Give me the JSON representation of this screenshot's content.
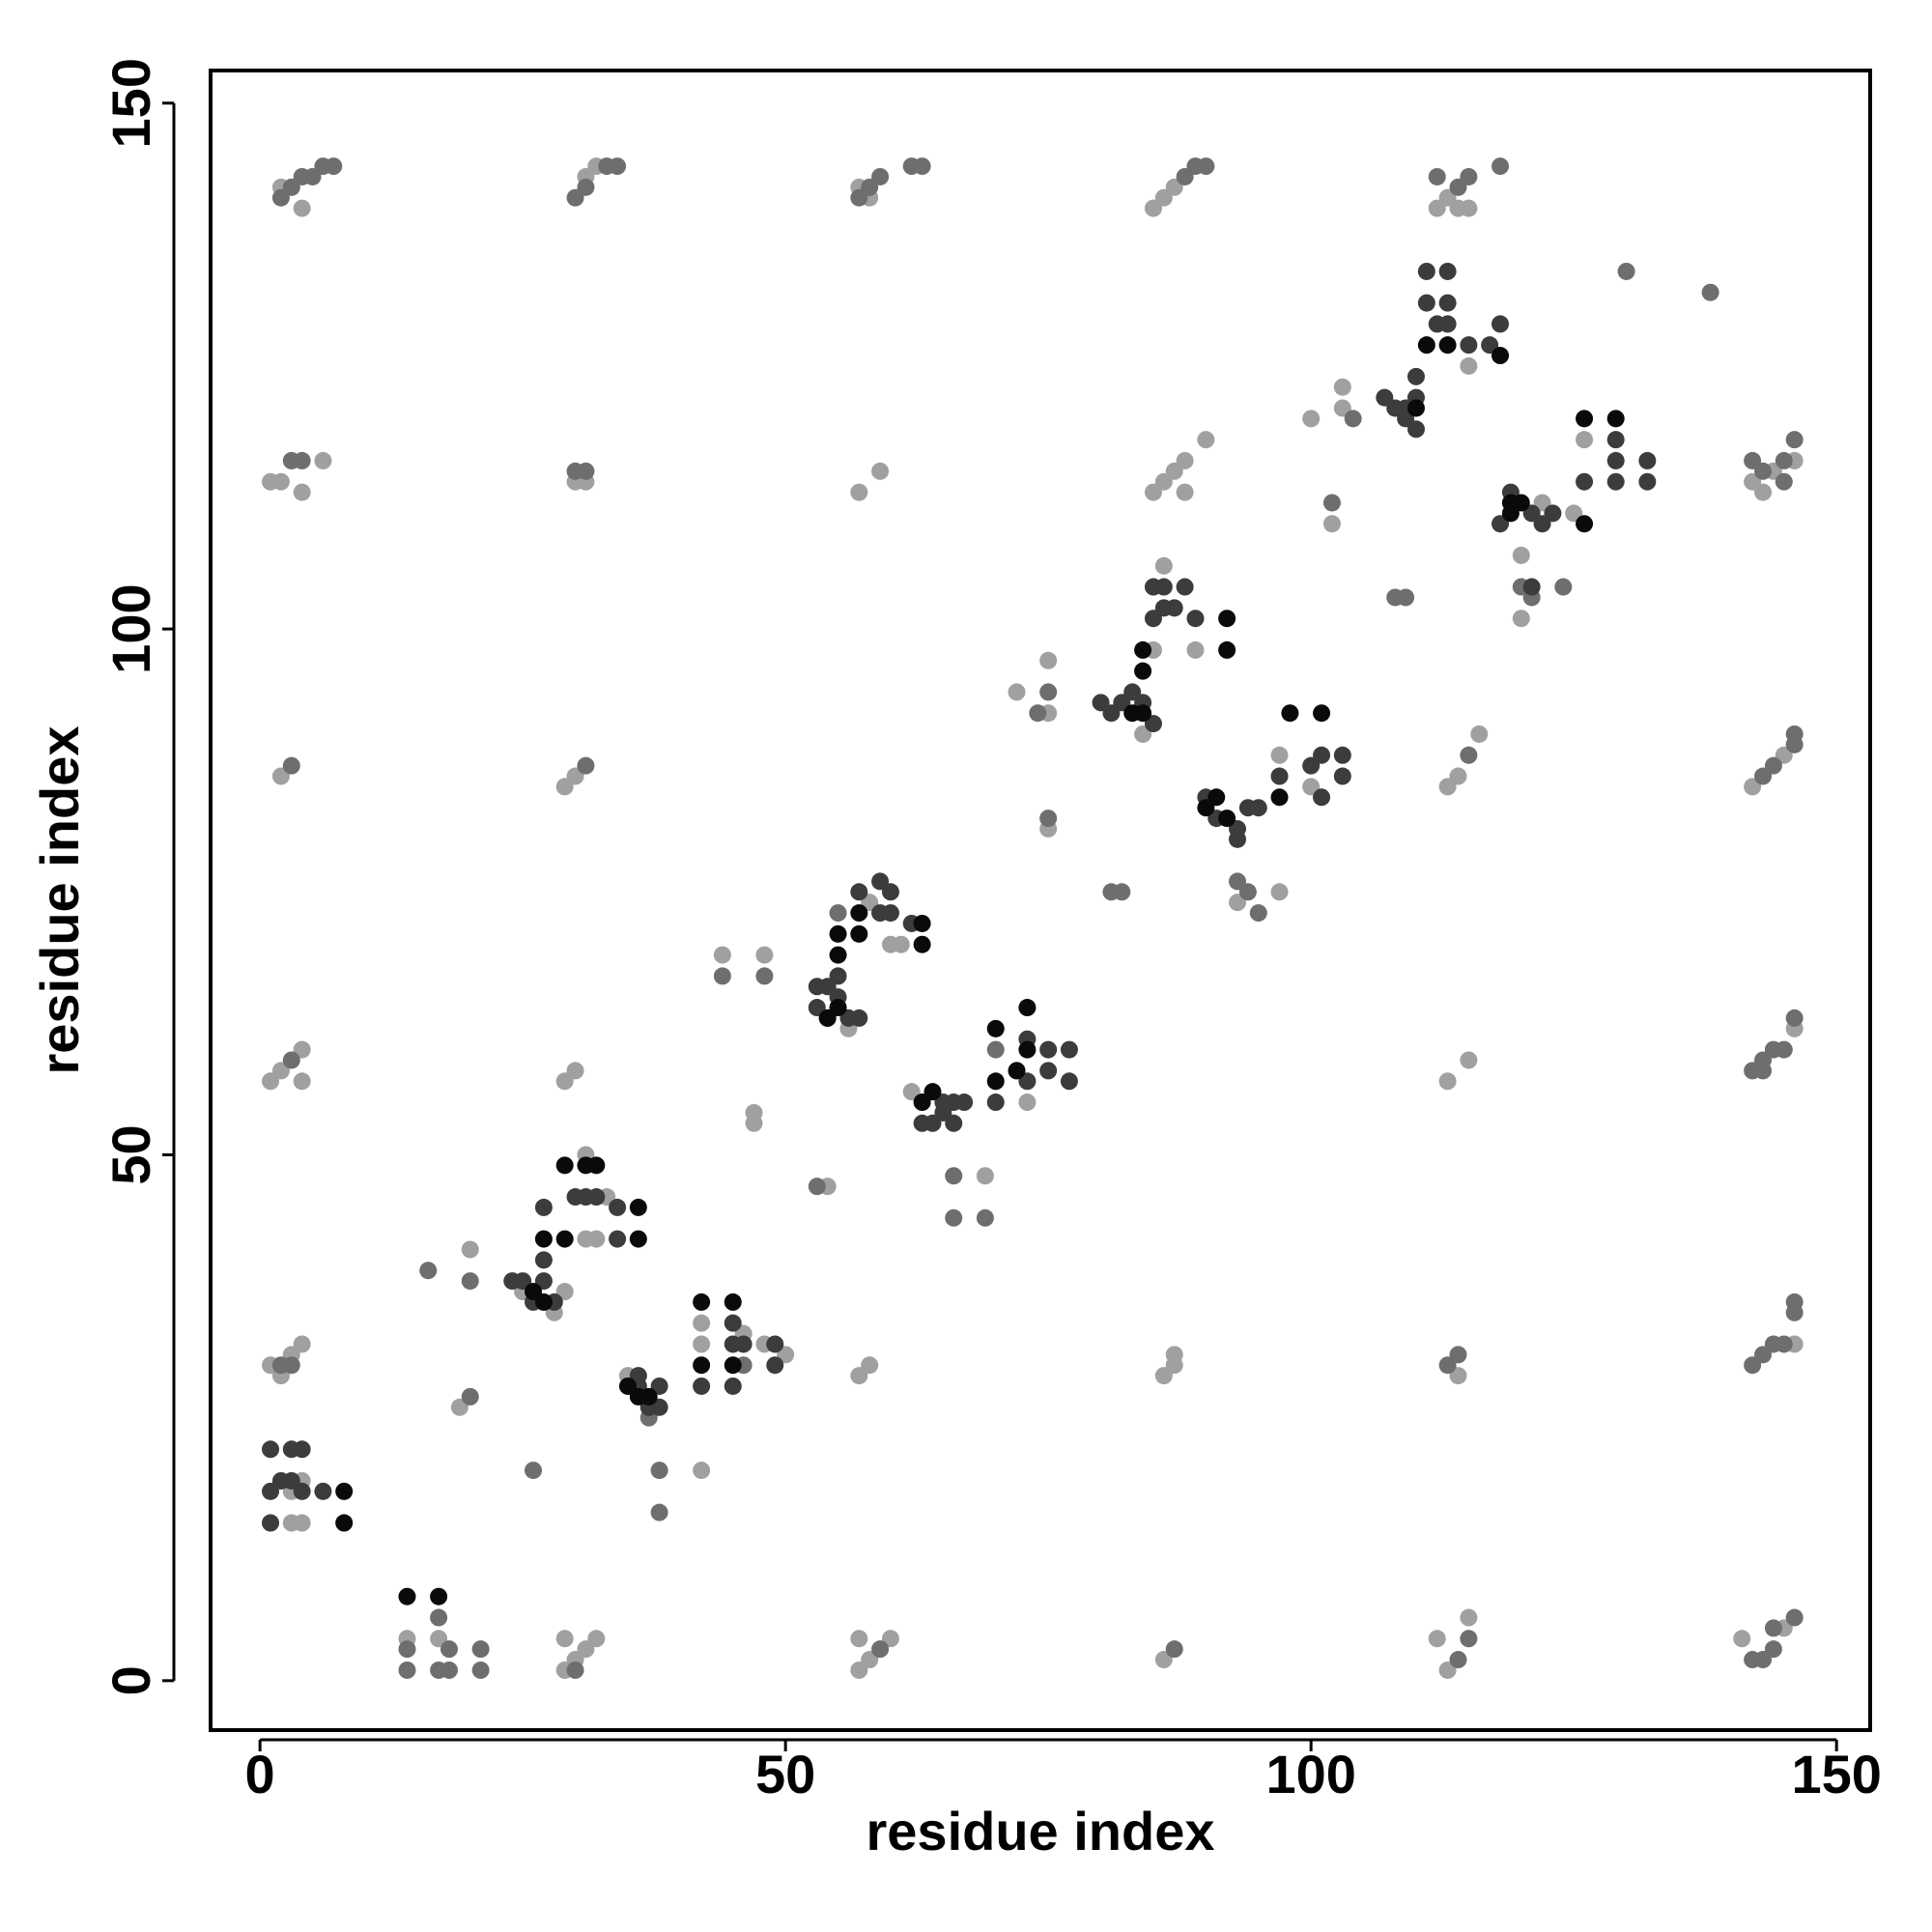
{
  "chart_data": {
    "type": "scatter",
    "xlabel": "residue index",
    "ylabel": "residue index",
    "xlim": [
      -4.7,
      153.2
    ],
    "ylim": [
      -4.7,
      153.1
    ],
    "xticks": [
      0,
      50,
      100,
      150
    ],
    "yticks": [
      0,
      50,
      100,
      150
    ],
    "series": [
      {
        "color": "#a0a0a0",
        "x": [
          2,
          4,
          31,
          32,
          57,
          58,
          85,
          86,
          87,
          112,
          113,
          114,
          115,
          1,
          2,
          4,
          6,
          30,
          31,
          57,
          59,
          85,
          86,
          87,
          88,
          90,
          88,
          142,
          143,
          144,
          146,
          2,
          29,
          30,
          113,
          114,
          116,
          142,
          145,
          1,
          2,
          4,
          4,
          29,
          30,
          113,
          115,
          146,
          1,
          2,
          3,
          4,
          57,
          58,
          86,
          87,
          87,
          114,
          146,
          14,
          17,
          29,
          29,
          30,
          31,
          32,
          57,
          58,
          60,
          57,
          86,
          112,
          113,
          115,
          141,
          145,
          3,
          4,
          3,
          4,
          25,
          28,
          29,
          31,
          31,
          32,
          33,
          20,
          19,
          35,
          42,
          42,
          46,
          48,
          50,
          42,
          56,
          58,
          61,
          60,
          44,
          48,
          47,
          47,
          54,
          62,
          69,
          72,
          73,
          75,
          75,
          72,
          75,
          86,
          85,
          89,
          84,
          97,
          100,
          93,
          97,
          100,
          103,
          103,
          102,
          120,
          120,
          115,
          126,
          125,
          122
        ],
        "values": [
          142,
          140,
          143,
          144,
          142,
          141,
          140,
          141,
          142,
          140,
          141,
          140,
          140,
          114,
          114,
          113,
          116,
          114,
          114,
          113,
          115,
          113,
          114,
          115,
          116,
          118,
          113,
          114,
          113,
          115,
          116,
          86,
          85,
          86,
          85,
          86,
          90,
          85,
          88,
          57,
          58,
          60,
          57,
          57,
          58,
          57,
          59,
          62,
          30,
          29,
          31,
          32,
          29,
          30,
          29,
          30,
          31,
          29,
          32,
          4,
          4,
          4,
          1,
          2,
          3,
          4,
          1,
          2,
          4,
          4,
          2,
          4,
          1,
          6,
          4,
          5,
          18,
          19,
          15,
          15,
          37,
          35,
          37,
          50,
          42,
          42,
          46,
          41,
          26,
          29,
          34,
          32,
          33,
          32,
          31,
          20,
          62,
          74,
          70,
          70,
          69,
          69,
          54,
          53,
          47,
          56,
          48,
          58,
          55,
          92,
          97,
          94,
          81,
          106,
          98,
          98,
          90,
          88,
          85,
          74,
          75,
          120,
          121,
          123,
          110,
          107,
          101,
          125,
          118,
          111,
          112
        ]
      },
      {
        "color": "#6e6e6e",
        "x": [
          2,
          3,
          4,
          5,
          6,
          7,
          30,
          31,
          33,
          34,
          57,
          58,
          59,
          62,
          63,
          88,
          89,
          90,
          112,
          114,
          115,
          118,
          3,
          4,
          30,
          31,
          142,
          143,
          145,
          145,
          146,
          3,
          31,
          115,
          143,
          144,
          146,
          146,
          3,
          142,
          143,
          144,
          145,
          143,
          146,
          2,
          3,
          113,
          114,
          142,
          143,
          144,
          145,
          146,
          146,
          14,
          14,
          17,
          17,
          18,
          18,
          21,
          21,
          30,
          59,
          87,
          114,
          115,
          142,
          143,
          144,
          144,
          146,
          16,
          20,
          20,
          26,
          37,
          38,
          38,
          46,
          44,
          48,
          55,
          53,
          66,
          69,
          66,
          70,
          74,
          75,
          75,
          81,
          82,
          93,
          94,
          95,
          104,
          102,
          108,
          109,
          130,
          138,
          120,
          124,
          121
        ],
        "values": [
          141,
          142,
          143,
          143,
          144,
          144,
          141,
          142,
          144,
          144,
          141,
          142,
          143,
          144,
          144,
          143,
          144,
          144,
          143,
          142,
          143,
          144,
          116,
          116,
          115,
          115,
          116,
          115,
          114,
          116,
          118,
          87,
          87,
          88,
          86,
          87,
          89,
          90,
          59,
          58,
          59,
          60,
          60,
          58,
          63,
          30,
          30,
          30,
          31,
          30,
          31,
          32,
          32,
          35,
          36,
          3,
          1,
          6,
          1,
          3,
          1,
          3,
          1,
          1,
          3,
          3,
          2,
          4,
          2,
          2,
          3,
          5,
          6,
          39,
          38,
          27,
          20,
          25,
          20,
          16,
          30,
          67,
          67,
          73,
          47,
          44,
          44,
          48,
          60,
          92,
          94,
          82,
          75,
          75,
          76,
          75,
          73,
          120,
          112,
          103,
          103,
          134,
          132,
          104,
          104,
          103
        ]
      },
      {
        "color": "#3c3c3c",
        "x": [
          1,
          3,
          4,
          1,
          2,
          3,
          4,
          6,
          1,
          24,
          25,
          26,
          27,
          28,
          27,
          27,
          30,
          31,
          32,
          34,
          34,
          36,
          37,
          38,
          38,
          36,
          45,
          45,
          46,
          49,
          49,
          42,
          45,
          53,
          54,
          55,
          56,
          57,
          53,
          54,
          55,
          55,
          59,
          60,
          57,
          59,
          60,
          62,
          63,
          64,
          66,
          65,
          66,
          67,
          65,
          70,
          73,
          75,
          75,
          77,
          77,
          73,
          80,
          81,
          82,
          83,
          84,
          85,
          85,
          86,
          88,
          86,
          87,
          89,
          85,
          90,
          91,
          93,
          93,
          94,
          95,
          97,
          100,
          101,
          103,
          103,
          101,
          107,
          108,
          109,
          110,
          109,
          110,
          110,
          111,
          113,
          111,
          113,
          112,
          113,
          115,
          117,
          118,
          118,
          119,
          121,
          122,
          123,
          121,
          129,
          129,
          126,
          132,
          132,
          129
        ],
        "values": [
          22,
          22,
          22,
          18,
          19,
          19,
          18,
          18,
          15,
          38,
          38,
          36,
          38,
          36,
          40,
          45,
          46,
          46,
          46,
          45,
          42,
          28,
          26,
          28,
          26,
          29,
          34,
          32,
          32,
          30,
          32,
          28,
          28,
          64,
          63,
          64,
          63,
          63,
          66,
          66,
          65,
          67,
          73,
          73,
          75,
          76,
          75,
          72,
          53,
          53,
          53,
          55,
          55,
          55,
          54,
          55,
          57,
          58,
          60,
          60,
          57,
          61,
          93,
          92,
          93,
          94,
          93,
          91,
          104,
          104,
          104,
          102,
          102,
          101,
          101,
          84,
          82,
          81,
          80,
          83,
          83,
          86,
          87,
          84,
          86,
          88,
          88,
          122,
          121,
          120,
          119,
          121,
          122,
          124,
          131,
          131,
          134,
          134,
          129,
          129,
          127,
          127,
          129,
          110,
          113,
          111,
          110,
          111,
          104,
          116,
          114,
          114,
          114,
          116,
          118
        ]
      },
      {
        "color": "#0a0a0a",
        "x": [
          8,
          8,
          14,
          17,
          26,
          27,
          27,
          29,
          29,
          31,
          32,
          36,
          36,
          35,
          36,
          37,
          42,
          45,
          42,
          45,
          55,
          55,
          57,
          57,
          54,
          55,
          63,
          63,
          64,
          63,
          70,
          73,
          70,
          73,
          72,
          84,
          83,
          84,
          84,
          92,
          92,
          91,
          90,
          92,
          98,
          101,
          97,
          110,
          111,
          113,
          118,
          119,
          126,
          129,
          126,
          119,
          120
        ],
        "values": [
          18,
          15,
          8,
          8,
          37,
          36,
          42,
          42,
          49,
          49,
          49,
          45,
          42,
          28,
          27,
          27,
          36,
          36,
          30,
          30,
          69,
          71,
          71,
          73,
          63,
          64,
          70,
          72,
          56,
          55,
          57,
          60,
          62,
          64,
          58,
          92,
          92,
          96,
          98,
          101,
          98,
          84,
          83,
          82,
          92,
          92,
          84,
          121,
          127,
          127,
          126,
          111,
          110,
          120,
          120,
          112,
          112
        ]
      }
    ]
  }
}
